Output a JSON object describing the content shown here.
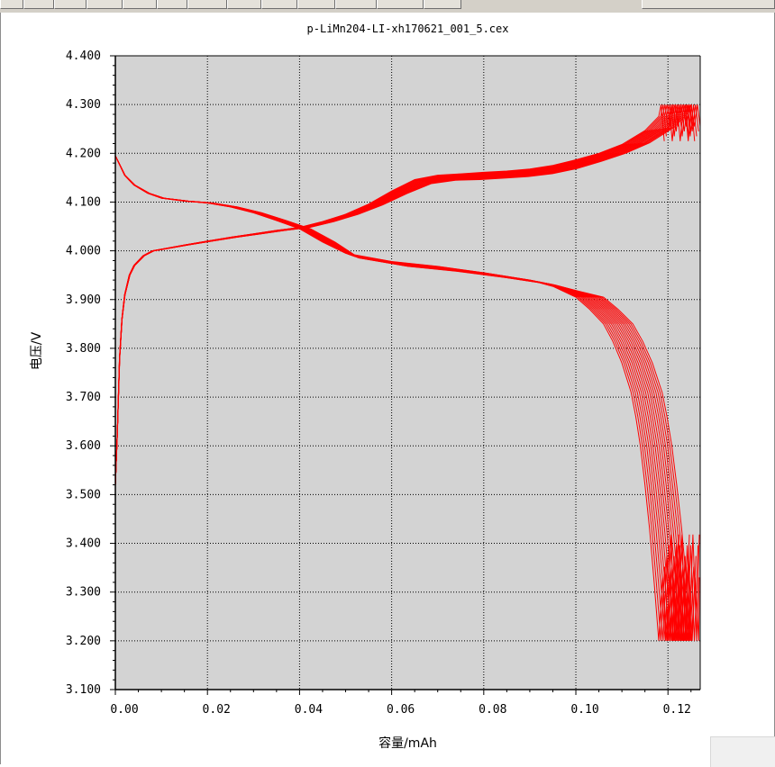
{
  "window": {
    "toolbar_buttons": [
      {
        "name": "tb-btn-1"
      },
      {
        "name": "tb-btn-2"
      },
      {
        "name": "tb-btn-3"
      },
      {
        "name": "tb-btn-4"
      },
      {
        "name": "tb-btn-5"
      },
      {
        "name": "tb-btn-6"
      },
      {
        "name": "tb-btn-7"
      },
      {
        "name": "tb-btn-8"
      },
      {
        "name": "tb-btn-9"
      },
      {
        "name": "tb-btn-10"
      },
      {
        "name": "tb-btn-11"
      },
      {
        "name": "tb-btn-12"
      },
      {
        "name": "tb-btn-13"
      }
    ]
  },
  "chart_data": {
    "type": "line",
    "title": "p-LiMn204-LI-xh170621_001_5.cex",
    "xlabel": "容量/mAh",
    "ylabel": "电压/V",
    "xlim": [
      0,
      0.127
    ],
    "ylim": [
      3.1,
      4.4
    ],
    "x_ticks": [
      0,
      0.02,
      0.04,
      0.06,
      0.08,
      0.1,
      0.12
    ],
    "x_tick_labels": [
      "0.00",
      "0.02",
      "0.04",
      "0.06",
      "0.08",
      "0.10",
      "0.12"
    ],
    "y_ticks": [
      3.1,
      3.2,
      3.3,
      3.4,
      3.5,
      3.6,
      3.7,
      3.8,
      3.9,
      4.0,
      4.1,
      4.2,
      4.3,
      4.4
    ],
    "y_tick_labels": [
      "3.100",
      "3.200",
      "3.300",
      "3.400",
      "3.500",
      "3.600",
      "3.700",
      "3.800",
      "3.900",
      "4.000",
      "4.100",
      "4.200",
      "4.300",
      "4.400"
    ],
    "grid": true,
    "background_color": "#d3d3d3",
    "line_color": "#ff0000",
    "cycle_count": 16,
    "charge_curve_base": {
      "x": [
        0.0,
        0.0004,
        0.0009,
        0.0014,
        0.002,
        0.003,
        0.004,
        0.006,
        0.008,
        0.011,
        0.015,
        0.02,
        0.025,
        0.03,
        0.035,
        0.04,
        0.045,
        0.05,
        0.055,
        0.06,
        0.065,
        0.07,
        0.075,
        0.08,
        0.085,
        0.09,
        0.095,
        0.1,
        0.105,
        0.11,
        0.115,
        0.118
      ],
      "y": [
        3.52,
        3.62,
        3.78,
        3.86,
        3.91,
        3.95,
        3.97,
        3.99,
        4.0,
        4.005,
        4.012,
        4.02,
        4.028,
        4.035,
        4.042,
        4.048,
        4.06,
        4.075,
        4.095,
        4.12,
        4.142,
        4.15,
        4.152,
        4.155,
        4.158,
        4.163,
        4.172,
        4.185,
        4.2,
        4.22,
        4.25,
        4.28
      ]
    },
    "discharge_curve_base": {
      "x": [
        0.0,
        0.001,
        0.002,
        0.004,
        0.007,
        0.01,
        0.015,
        0.02,
        0.025,
        0.03,
        0.035,
        0.04,
        0.045,
        0.05,
        0.06,
        0.07,
        0.08,
        0.09,
        0.095,
        0.1,
        0.103,
        0.106,
        0.108,
        0.11,
        0.112,
        0.113,
        0.114,
        0.115,
        0.116,
        0.117,
        0.118
      ],
      "y": [
        4.195,
        4.175,
        4.155,
        4.135,
        4.118,
        4.108,
        4.102,
        4.098,
        4.09,
        4.078,
        4.062,
        4.045,
        4.018,
        3.99,
        3.973,
        3.963,
        3.95,
        3.935,
        3.922,
        3.905,
        3.88,
        3.85,
        3.815,
        3.77,
        3.71,
        3.66,
        3.6,
        3.52,
        3.43,
        3.32,
        3.2
      ]
    }
  }
}
